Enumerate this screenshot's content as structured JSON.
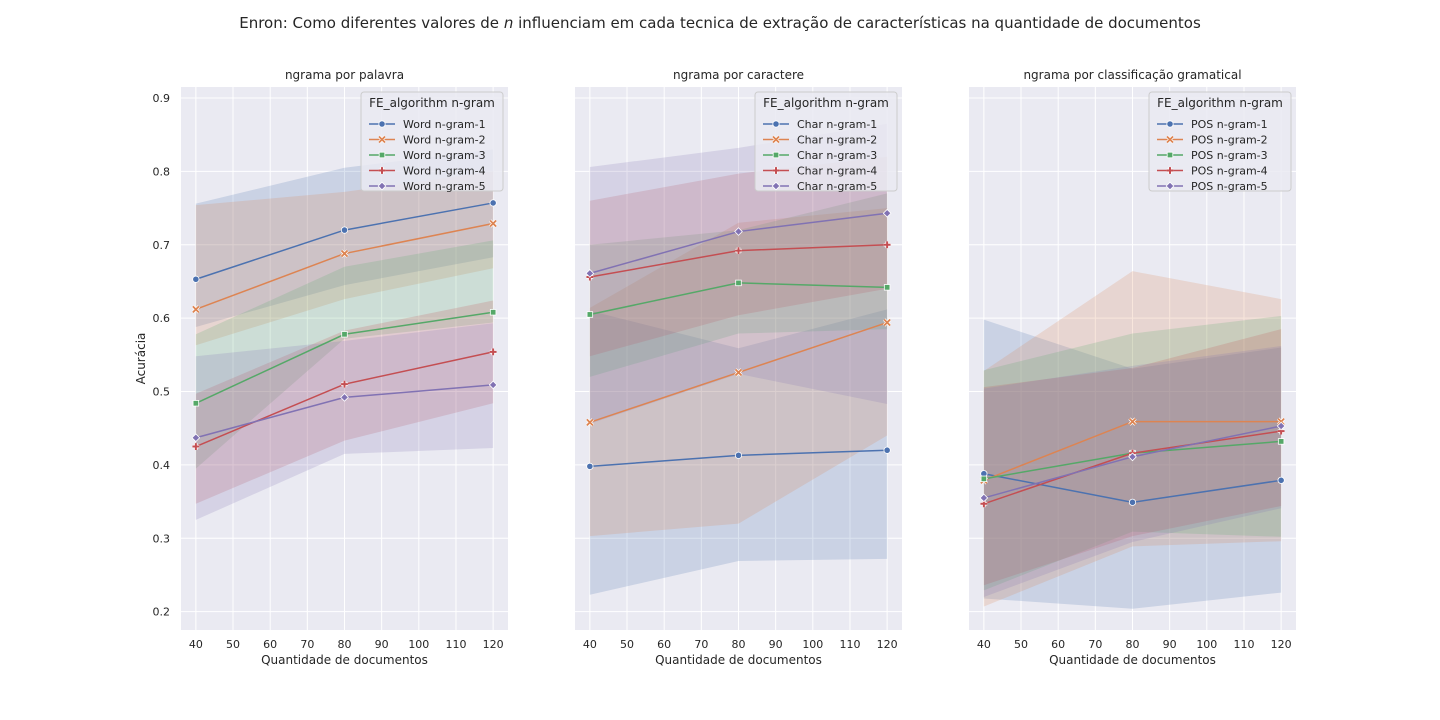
{
  "title_prefix": "Enron: Como diferentes valores de ",
  "title_italic": "n",
  "title_suffix": " influenciam em cada tecnica de extração de características na quantidade de documentos",
  "colors": [
    "#4c72b0",
    "#dd8452",
    "#55a868",
    "#c44e52",
    "#8172b3"
  ],
  "markers": [
    "circle",
    "x",
    "square",
    "plus",
    "diamond"
  ],
  "chart_data": [
    {
      "type": "line",
      "title": "ngrama por palavra",
      "xlabel": "Quantidade de documentos",
      "ylabel": "Acurácia",
      "xlim": [
        36,
        124
      ],
      "ylim": [
        0.175,
        0.915
      ],
      "xticks": [
        40,
        50,
        60,
        70,
        80,
        90,
        100,
        110,
        120
      ],
      "yticks": [
        0.2,
        0.3,
        0.4,
        0.5,
        0.6,
        0.7,
        0.8,
        0.9
      ],
      "show_yticklabels": true,
      "grid": true,
      "legend_title": "FE_algorithm n-gram",
      "legend_loc": "top-right",
      "x": [
        40,
        80,
        120
      ],
      "series": [
        {
          "name": "Word n-gram-1",
          "values": [
            0.653,
            0.72,
            0.757
          ],
          "lower": [
            0.588,
            0.645,
            0.683
          ],
          "upper": [
            0.756,
            0.805,
            0.83
          ]
        },
        {
          "name": "Word n-gram-2",
          "values": [
            0.612,
            0.688,
            0.729
          ],
          "lower": [
            0.563,
            0.626,
            0.668
          ],
          "upper": [
            0.754,
            0.772,
            0.8
          ]
        },
        {
          "name": "Word n-gram-3",
          "values": [
            0.484,
            0.578,
            0.608
          ],
          "lower": [
            0.395,
            0.572,
            0.594
          ],
          "upper": [
            0.578,
            0.67,
            0.706
          ]
        },
        {
          "name": "Word n-gram-4",
          "values": [
            0.425,
            0.51,
            0.554
          ],
          "lower": [
            0.347,
            0.433,
            0.484
          ],
          "upper": [
            0.497,
            0.583,
            0.624
          ]
        },
        {
          "name": "Word n-gram-5",
          "values": [
            0.437,
            0.492,
            0.509
          ],
          "lower": [
            0.325,
            0.415,
            0.423
          ],
          "upper": [
            0.548,
            0.569,
            0.593
          ]
        }
      ]
    },
    {
      "type": "line",
      "title": "ngrama por caractere",
      "xlabel": "Quantidade de documentos",
      "ylabel": "",
      "xlim": [
        36,
        124
      ],
      "ylim": [
        0.175,
        0.915
      ],
      "xticks": [
        40,
        50,
        60,
        70,
        80,
        90,
        100,
        110,
        120
      ],
      "yticks": [
        0.2,
        0.3,
        0.4,
        0.5,
        0.6,
        0.7,
        0.8,
        0.9
      ],
      "show_yticklabels": false,
      "grid": true,
      "legend_title": "FE_algorithm n-gram",
      "legend_loc": "top-right",
      "x": [
        40,
        80,
        120
      ],
      "series": [
        {
          "name": "Char n-gram-1",
          "values": [
            0.398,
            0.413,
            0.42
          ],
          "lower": [
            0.223,
            0.269,
            0.272
          ],
          "upper": [
            0.61,
            0.559,
            0.612
          ]
        },
        {
          "name": "Char n-gram-2",
          "values": [
            0.458,
            0.526,
            0.594
          ],
          "lower": [
            0.303,
            0.32,
            0.44
          ],
          "upper": [
            0.614,
            0.73,
            0.75
          ]
        },
        {
          "name": "Char n-gram-3",
          "values": [
            0.605,
            0.648,
            0.642
          ],
          "lower": [
            0.52,
            0.579,
            0.585
          ],
          "upper": [
            0.7,
            0.72,
            0.77
          ]
        },
        {
          "name": "Char n-gram-4",
          "values": [
            0.656,
            0.692,
            0.7
          ],
          "lower": [
            0.548,
            0.604,
            0.64
          ],
          "upper": [
            0.76,
            0.797,
            0.82
          ]
        },
        {
          "name": "Char n-gram-5",
          "values": [
            0.661,
            0.718,
            0.743
          ],
          "lower": [
            0.456,
            0.524,
            0.483
          ],
          "upper": [
            0.806,
            0.832,
            0.865
          ]
        }
      ]
    },
    {
      "type": "line",
      "title": "ngrama por classificação gramatical",
      "xlabel": "Quantidade de documentos",
      "ylabel": "",
      "xlim": [
        36,
        124
      ],
      "ylim": [
        0.175,
        0.915
      ],
      "xticks": [
        40,
        50,
        60,
        70,
        80,
        90,
        100,
        110,
        120
      ],
      "yticks": [
        0.2,
        0.3,
        0.4,
        0.5,
        0.6,
        0.7,
        0.8,
        0.9
      ],
      "show_yticklabels": false,
      "grid": true,
      "legend_title": "FE_algorithm n-gram",
      "legend_loc": "top-right",
      "x": [
        40,
        80,
        120
      ],
      "series": [
        {
          "name": "POS n-gram-1",
          "values": [
            0.388,
            0.349,
            0.379
          ],
          "lower": [
            0.218,
            0.204,
            0.226
          ],
          "upper": [
            0.598,
            0.531,
            0.56
          ]
        },
        {
          "name": "POS n-gram-2",
          "values": [
            0.379,
            0.459,
            0.459
          ],
          "lower": [
            0.207,
            0.289,
            0.296
          ],
          "upper": [
            0.528,
            0.664,
            0.626
          ]
        },
        {
          "name": "POS n-gram-3",
          "values": [
            0.381,
            0.416,
            0.432
          ],
          "lower": [
            0.229,
            0.309,
            0.302
          ],
          "upper": [
            0.529,
            0.579,
            0.603
          ]
        },
        {
          "name": "POS n-gram-4",
          "values": [
            0.347,
            0.416,
            0.446
          ],
          "lower": [
            0.236,
            0.303,
            0.344
          ],
          "upper": [
            0.506,
            0.532,
            0.585
          ]
        },
        {
          "name": "POS n-gram-5",
          "values": [
            0.355,
            0.411,
            0.453
          ],
          "lower": [
            0.22,
            0.295,
            0.341
          ],
          "upper": [
            0.504,
            0.535,
            0.562
          ]
        }
      ]
    }
  ]
}
